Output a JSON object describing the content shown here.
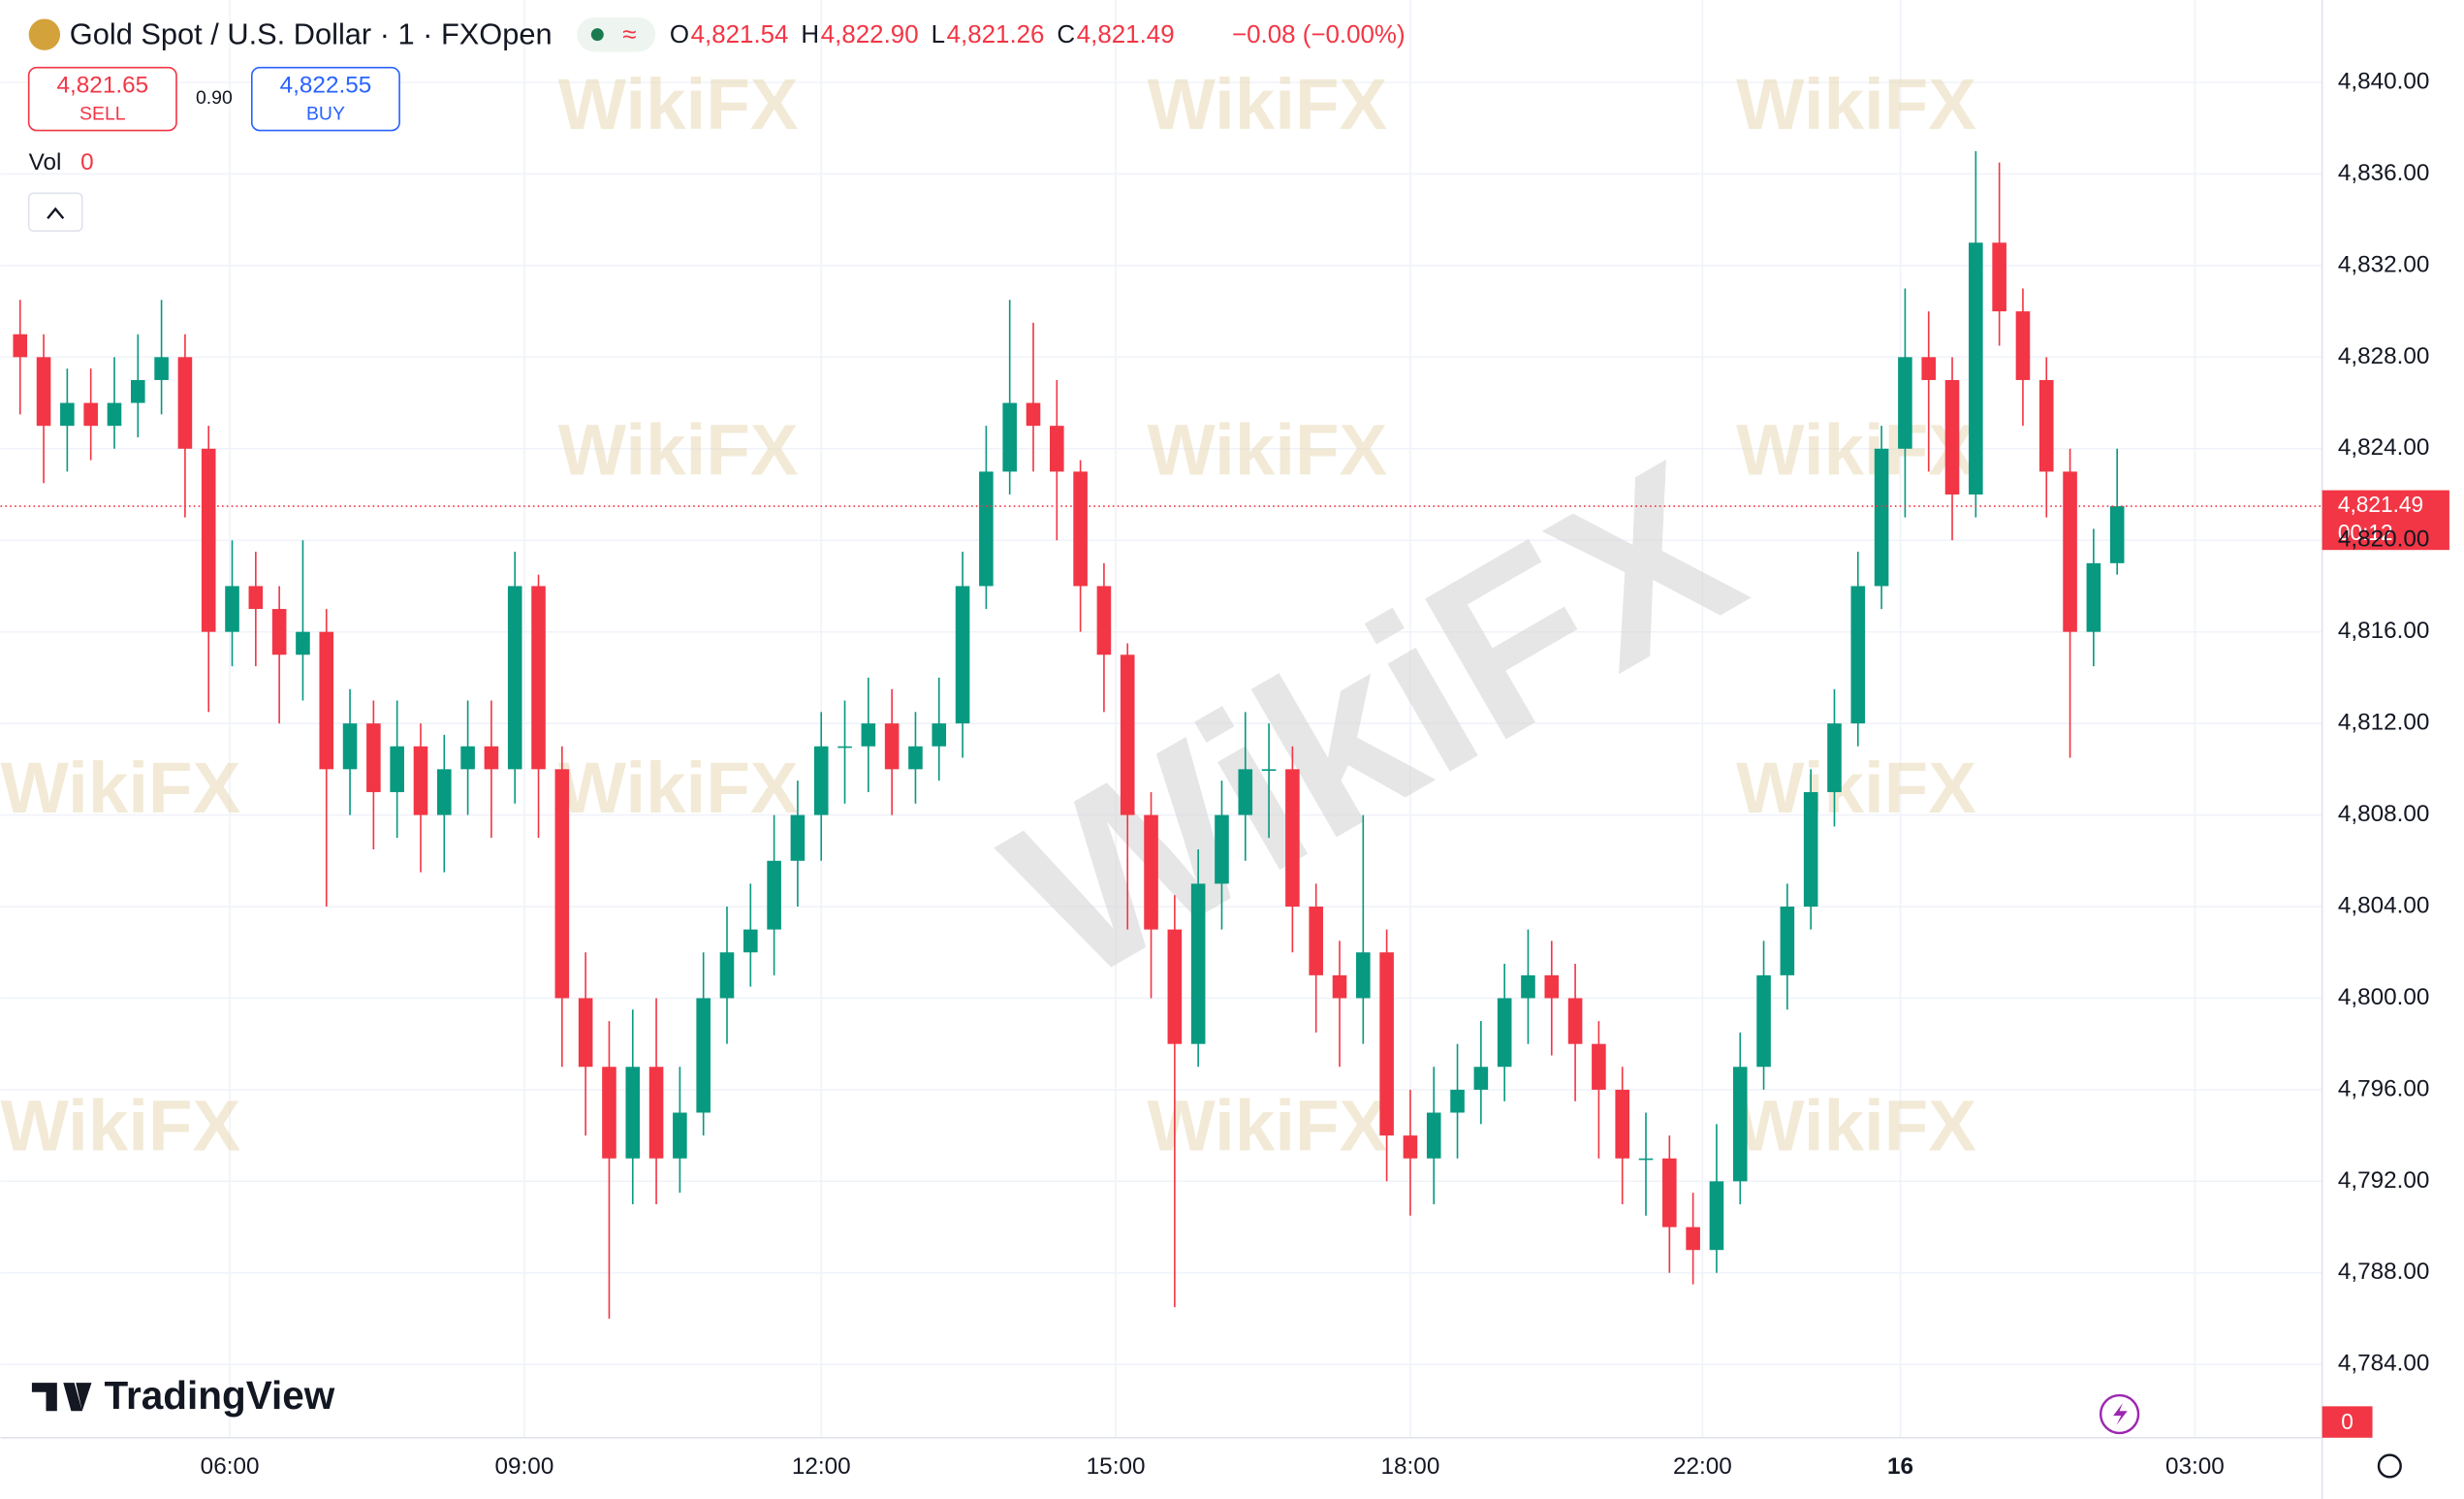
{
  "header": {
    "symbol": "Gold Spot / U.S. Dollar · 1 · FXOpen",
    "ohlc": [
      {
        "key": "O",
        "value": "4,821.54"
      },
      {
        "key": "H",
        "value": "4,822.90"
      },
      {
        "key": "L",
        "value": "4,821.26"
      },
      {
        "key": "C",
        "value": "4,821.49"
      }
    ],
    "change": "−0.08 (−0.00%)",
    "sell": {
      "price": "4,821.65",
      "label": "SELL"
    },
    "spread": "0.90",
    "buy": {
      "price": "4,822.55",
      "label": "BUY"
    },
    "volume": {
      "label": "Vol",
      "value": "0"
    }
  },
  "price_label": {
    "price": "4,821.49",
    "timer": "00:12"
  },
  "volume_badge": "0",
  "logo": "TradingView",
  "watermark": "WikiFX",
  "chart_data": {
    "type": "candlestick",
    "up_color": "#089981",
    "down_color": "#f23645",
    "grid": true,
    "xlim": [
      0,
      98.2
    ],
    "ylim": [
      4780.8,
      4843.6
    ],
    "xticks": [
      {
        "value": 9.4,
        "label": "06:00"
      },
      {
        "value": 21.9,
        "label": "09:00"
      },
      {
        "value": 34.5,
        "label": "12:00"
      },
      {
        "value": 47,
        "label": "15:00"
      },
      {
        "value": 59.5,
        "label": "18:00"
      },
      {
        "value": 71.9,
        "label": "22:00"
      },
      {
        "value": 80.3,
        "label": "16"
      },
      {
        "value": 92.8,
        "label": "03:00"
      }
    ],
    "yticks": [
      {
        "value": 4784,
        "label": "4,784.00"
      },
      {
        "value": 4788,
        "label": "4,788.00"
      },
      {
        "value": 4792,
        "label": "4,792.00"
      },
      {
        "value": 4796,
        "label": "4,796.00"
      },
      {
        "value": 4800,
        "label": "4,800.00"
      },
      {
        "value": 4804,
        "label": "4,804.00"
      },
      {
        "value": 4808,
        "label": "4,808.00"
      },
      {
        "value": 4812,
        "label": "4,812.00"
      },
      {
        "value": 4816,
        "label": "4,816.00"
      },
      {
        "value": 4820,
        "label": "4,820.00"
      },
      {
        "value": 4824,
        "label": "4,824.00"
      },
      {
        "value": 4828,
        "label": "4,828.00"
      },
      {
        "value": 4832,
        "label": "4,832.00"
      },
      {
        "value": 4836,
        "label": "4,836.00"
      },
      {
        "value": 4840,
        "label": "4,840.00"
      }
    ],
    "open": [
      4829,
      4828,
      4825,
      4826,
      4825,
      4826,
      4827,
      4828,
      4824,
      4816,
      4818,
      4817,
      4815,
      4816,
      4810,
      4812,
      4809,
      4811,
      4808,
      4810,
      4811,
      4810,
      4818,
      4810,
      4800,
      4797,
      4793,
      4797,
      4793,
      4795,
      4800,
      4802,
      4803,
      4806,
      4808,
      4811,
      4811,
      4812,
      4810,
      4811,
      4812,
      4818,
      4823,
      4826,
      4825,
      4823,
      4818,
      4815,
      4808,
      4803,
      4798,
      4805,
      4808,
      4810,
      4810,
      4804,
      4801,
      4800,
      4802,
      4794,
      4793,
      4795,
      4796,
      4797,
      4800,
      4801,
      4800,
      4798,
      4796,
      4793,
      4793,
      4790,
      4789,
      4792,
      4797,
      4801,
      4804,
      4809,
      4812,
      4818,
      4824,
      4828,
      4827,
      4822,
      4833,
      4830,
      4827,
      4823,
      4816,
      4819
    ],
    "high": [
      4830.5,
      4829,
      4827.5,
      4827.5,
      4828,
      4829,
      4830.5,
      4829,
      4825,
      4820,
      4819.5,
      4818,
      4820,
      4817,
      4813.5,
      4813,
      4813,
      4812,
      4811.5,
      4813,
      4813,
      4819.5,
      4818.5,
      4811,
      4802,
      4799,
      4799.5,
      4800,
      4797,
      4802,
      4804,
      4805,
      4808,
      4809.5,
      4812.5,
      4813,
      4814,
      4813.5,
      4812.5,
      4814,
      4819.5,
      4825,
      4830.5,
      4829.5,
      4827,
      4823.5,
      4819,
      4815.5,
      4809,
      4804.5,
      4806.5,
      4809.5,
      4812.5,
      4812,
      4811,
      4805,
      4802.5,
      4808,
      4803,
      4796,
      4797,
      4798,
      4799,
      4801.5,
      4803,
      4802.5,
      4801.5,
      4799,
      4797,
      4795,
      4794,
      4791.5,
      4794.5,
      4798.5,
      4802.5,
      4805,
      4810,
      4813.5,
      4819.5,
      4825,
      4831,
      4830,
      4828,
      4837,
      4836.5,
      4831,
      4828,
      4824,
      4820.5,
      4824
    ],
    "low": [
      4825.5,
      4822.5,
      4823,
      4823.5,
      4824,
      4824.5,
      4825.5,
      4821,
      4812.5,
      4814.5,
      4814.5,
      4812,
      4813,
      4804,
      4808,
      4806.5,
      4807,
      4805.5,
      4805.5,
      4808,
      4807,
      4808.5,
      4807,
      4797,
      4794,
      4786,
      4791,
      4791,
      4791.5,
      4794,
      4798,
      4800.5,
      4801,
      4804,
      4806,
      4808.5,
      4809,
      4808,
      4808.5,
      4809.5,
      4810.5,
      4817,
      4822,
      4823,
      4820,
      4816,
      4812.5,
      4803,
      4800,
      4786.5,
      4797,
      4803,
      4806,
      4807,
      4802,
      4798.5,
      4797,
      4798,
      4792,
      4790.5,
      4791,
      4793,
      4794.5,
      4795.5,
      4798,
      4797.5,
      4795.5,
      4793,
      4791,
      4790.5,
      4788,
      4787.5,
      4788,
      4791,
      4796,
      4799.5,
      4803,
      4807.5,
      4811,
      4817,
      4821,
      4823,
      4820,
      4821,
      4828.5,
      4825,
      4821,
      4810.5,
      4814.5,
      4818.5
    ],
    "close": [
      4828,
      4825,
      4826,
      4825,
      4826,
      4827,
      4828,
      4824,
      4816,
      4818,
      4817,
      4815,
      4816,
      4810,
      4812,
      4809,
      4811,
      4808,
      4810,
      4811,
      4810,
      4818,
      4810,
      4800,
      4797,
      4793,
      4797,
      4793,
      4795,
      4800,
      4802,
      4803,
      4806,
      4808,
      4811,
      4811,
      4812,
      4810,
      4811,
      4812,
      4818,
      4823,
      4826,
      4825,
      4823,
      4818,
      4815,
      4808,
      4803,
      4798,
      4805,
      4808,
      4810,
      4810,
      4804,
      4801,
      4800,
      4802,
      4794,
      4793,
      4795,
      4796,
      4797,
      4800,
      4801,
      4800,
      4798,
      4796,
      4793,
      4793,
      4790,
      4789,
      4792,
      4797,
      4801,
      4804,
      4809,
      4812,
      4818,
      4824,
      4828,
      4827,
      4822,
      4833,
      4830,
      4827,
      4823,
      4816,
      4819,
      4821.49
    ]
  }
}
